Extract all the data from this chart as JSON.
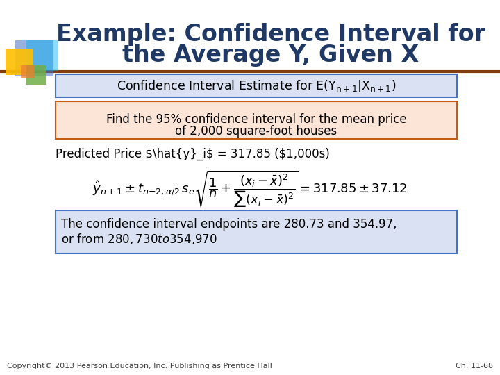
{
  "title_line1": "Example: Confidence Interval for",
  "title_line2": "the Average Y, Given X",
  "title_color": "#1F3864",
  "title_fontsize": 24,
  "bg_color": "#FFFFFF",
  "header_box_bg": "#D9E1F2",
  "header_box_border": "#4472C4",
  "find_box_text1": "Find the 95% confidence interval for the mean price",
  "find_box_text2": "of 2,000 square-foot houses",
  "find_box_bg": "#FCE4D6",
  "find_box_border": "#C55A11",
  "result_box_text1": "The confidence interval endpoints are 280.73 and 354.97,",
  "result_box_text2": "or from $280,730 to $354,970",
  "result_box_bg": "#D9E1F2",
  "result_box_border": "#4472C4",
  "footer_left": "Copyright© 2013 Pearson Education, Inc. Publishing as Prentice Hall",
  "footer_right": "Ch. 11-68",
  "footer_color": "#404040",
  "footer_fontsize": 8,
  "separator_color": "#843C0C",
  "body_text_color": "#000000",
  "body_fontsize": 12,
  "deco_blue": "#4472C4",
  "deco_green": "#70AD47",
  "deco_yellow": "#FFC000",
  "deco_orange": "#ED7D31",
  "deco_teal": "#00B0F0"
}
